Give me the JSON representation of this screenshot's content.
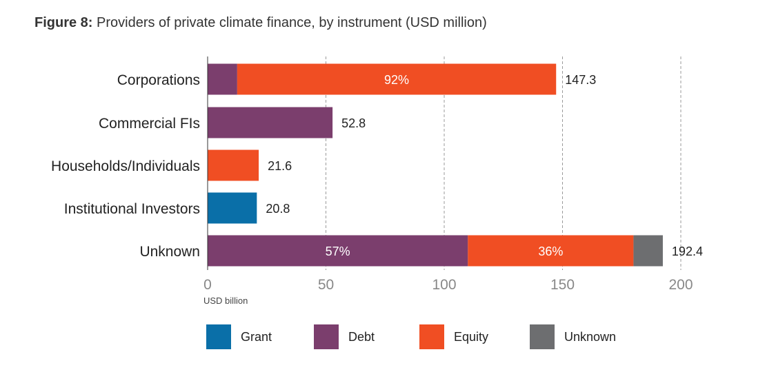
{
  "title": {
    "prefix": "Figure 8:",
    "text": "Providers of private climate finance, by instrument (USD million)"
  },
  "colors": {
    "Grant": "#0a6fa8",
    "Debt": "#7b3e6d",
    "Equity": "#f04e23",
    "Unknown": "#6d6e70"
  },
  "chart_data": {
    "type": "bar",
    "orientation": "horizontal",
    "stacked": true,
    "xlabel": "USD billion",
    "xlim": [
      0,
      200
    ],
    "xticks": [
      0,
      50,
      100,
      150,
      200
    ],
    "grid": "vertical dashed",
    "categories": [
      "Corporations",
      "Commercial FIs",
      "Households/Individuals",
      "Institutional Investors",
      "Unknown"
    ],
    "series": [
      {
        "name": "Grant",
        "values": [
          0,
          0,
          0,
          20.8,
          0
        ]
      },
      {
        "name": "Debt",
        "values": [
          12.5,
          52.8,
          0,
          0,
          110.0
        ]
      },
      {
        "name": "Equity",
        "values": [
          134.8,
          0,
          21.6,
          0,
          70.0
        ]
      },
      {
        "name": "Unknown",
        "values": [
          0,
          0,
          0,
          0,
          12.4
        ]
      }
    ],
    "totals": [
      "147.3",
      "52.8",
      "21.6",
      "20.8",
      "192.4"
    ],
    "segment_labels": [
      {
        "category": "Corporations",
        "series": "Equity",
        "text": "92%"
      },
      {
        "category": "Unknown",
        "series": "Debt",
        "text": "57%"
      },
      {
        "category": "Unknown",
        "series": "Equity",
        "text": "36%"
      }
    ],
    "legend": [
      "Grant",
      "Debt",
      "Equity",
      "Unknown"
    ],
    "legend_position": "bottom"
  }
}
